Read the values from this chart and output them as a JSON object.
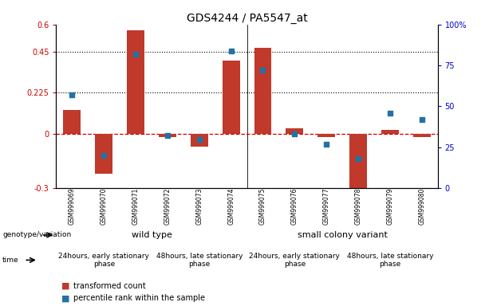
{
  "title": "GDS4244 / PA5547_at",
  "samples": [
    "GSM999069",
    "GSM999070",
    "GSM999071",
    "GSM999072",
    "GSM999073",
    "GSM999074",
    "GSM999075",
    "GSM999076",
    "GSM999077",
    "GSM999078",
    "GSM999079",
    "GSM999080"
  ],
  "bar_values": [
    0.13,
    -0.22,
    0.57,
    -0.02,
    -0.07,
    0.4,
    0.47,
    0.03,
    -0.02,
    -0.38,
    0.02,
    -0.02
  ],
  "dot_values": [
    57,
    20,
    82,
    32,
    30,
    84,
    72,
    33,
    27,
    18,
    46,
    42
  ],
  "ylim_left": [
    -0.3,
    0.6
  ],
  "ylim_right": [
    0,
    100
  ],
  "yticks_left": [
    -0.3,
    0.0,
    0.225,
    0.45,
    0.6
  ],
  "ytick_labels_left": [
    "-0.3",
    "0",
    "0.225",
    "0.45",
    "0.6"
  ],
  "yticks_right": [
    0,
    25,
    50,
    75,
    100
  ],
  "ytick_labels_right": [
    "0",
    "25",
    "50",
    "75",
    "100%"
  ],
  "hlines": [
    0.225,
    0.45
  ],
  "bar_color": "#c0392b",
  "dot_color": "#2471a3",
  "zero_line_color": "#cc0000",
  "genotype_groups": [
    {
      "label": "wild type",
      "start": 0,
      "end": 6,
      "color": "#aaffaa"
    },
    {
      "label": "small colony variant",
      "start": 6,
      "end": 12,
      "color": "#00dd55"
    }
  ],
  "time_groups": [
    {
      "label": "24hours, early stationary\nphase",
      "start": 0,
      "end": 3,
      "color": "#ee88ee"
    },
    {
      "label": "48hours, late stationary\nphase",
      "start": 3,
      "end": 6,
      "color": "#cc44cc"
    },
    {
      "label": "24hours, early stationary\nphase",
      "start": 6,
      "end": 9,
      "color": "#ee88ee"
    },
    {
      "label": "48hours, late stationary\nphase",
      "start": 9,
      "end": 12,
      "color": "#cc44cc"
    }
  ],
  "legend_bar_label": "transformed count",
  "legend_dot_label": "percentile rank within the sample",
  "title_fontsize": 10,
  "tick_fontsize": 7,
  "sample_fontsize": 5.5,
  "label_fontsize": 8,
  "annot_left_color": "#cc0000",
  "annot_right_color": "#0000cc",
  "sample_box_color": "#d0d0d0",
  "xlim": [
    -0.5,
    11.5
  ]
}
